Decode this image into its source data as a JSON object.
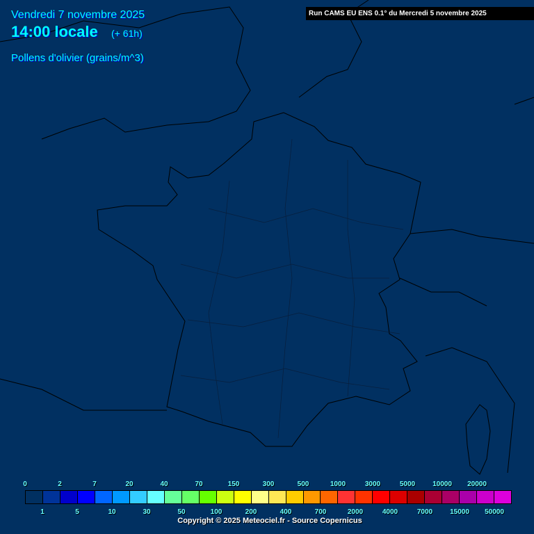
{
  "header": {
    "date": "Vendredi 7 novembre 2025",
    "time": "14:00 locale",
    "lead": "(+ 61h)",
    "variable": "Pollens d'olivier (grains/m^3)",
    "run": "Run CAMS EU ENS 0.1° du Mercredi 5 novembre 2025"
  },
  "legend": {
    "labels": [
      "0",
      "1",
      "2",
      "5",
      "7",
      "10",
      "20",
      "30",
      "40",
      "50",
      "70",
      "100",
      "150",
      "200",
      "300",
      "400",
      "500",
      "700",
      "1000",
      "2000",
      "3000",
      "4000",
      "5000",
      "7000",
      "10000",
      "15000",
      "20000",
      "50000"
    ],
    "colors": [
      "#013061",
      "#003399",
      "#0000cc",
      "#0000ff",
      "#0066ff",
      "#0099ff",
      "#33ccff",
      "#66ffff",
      "#66ff99",
      "#66ff66",
      "#66ff00",
      "#ccff11",
      "#ffff00",
      "#ffff88",
      "#ffe855",
      "#ffcc00",
      "#ff9900",
      "#ff6600",
      "#ff3333",
      "#ff3300",
      "#ff0000",
      "#dd0000",
      "#aa0000",
      "#aa0033",
      "#aa0066",
      "#aa00aa",
      "#cc00cc",
      "#dd00dd"
    ]
  },
  "copyright": "Copyright © 2025 Meteociel.fr - Source Copernicus",
  "colors": {
    "background": "#013061",
    "title_text": "#00ffff",
    "legend_text": "#66ffff"
  }
}
